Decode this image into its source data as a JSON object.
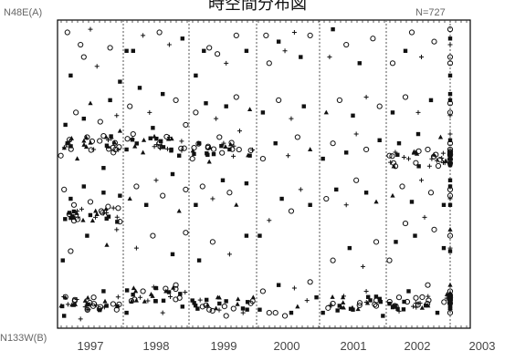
{
  "chart_data": {
    "type": "scatter",
    "title": "時空間分布図",
    "top_label": "N48E(A)",
    "bottom_label": "N133W(B)",
    "n_label": "N=727",
    "x_ticks": [
      "1997",
      "1998",
      "1999",
      "2000",
      "2001",
      "2002",
      "2003"
    ],
    "x_range": [
      1996.0,
      2003.0
    ],
    "y_range": [
      0,
      1
    ],
    "grid": false,
    "legend": "none",
    "marker_types": [
      "circle",
      "square",
      "triangle",
      "plus"
    ],
    "points": [
      [
        1996.1,
        0.04,
        "square"
      ],
      [
        1996.08,
        0.22,
        "square"
      ],
      [
        1996.55,
        0.1,
        "circle"
      ],
      [
        1996.7,
        0.12,
        "square"
      ],
      [
        1996.9,
        0.06,
        "circle"
      ],
      [
        1996.35,
        0.03,
        "plus"
      ],
      [
        1996.1,
        0.45,
        "circle"
      ],
      [
        1996.2,
        0.42,
        "square"
      ],
      [
        1996.25,
        0.4,
        "circle"
      ],
      [
        1996.3,
        0.38,
        "plus"
      ],
      [
        1996.4,
        0.46,
        "square"
      ],
      [
        1996.5,
        0.41,
        "circle"
      ],
      [
        1996.6,
        0.37,
        "triangle"
      ],
      [
        1996.7,
        0.44,
        "square"
      ],
      [
        1996.85,
        0.39,
        "plus"
      ],
      [
        1996.95,
        0.43,
        "square"
      ],
      [
        1996.05,
        0.56,
        "circle"
      ],
      [
        1996.15,
        0.6,
        "square"
      ],
      [
        1996.3,
        0.55,
        "triangle"
      ],
      [
        1996.45,
        0.62,
        "circle"
      ],
      [
        1996.55,
        0.58,
        "plus"
      ],
      [
        1996.7,
        0.52,
        "square"
      ],
      [
        1996.85,
        0.57,
        "circle"
      ],
      [
        1996.95,
        0.64,
        "triangle"
      ],
      [
        1996.12,
        0.66,
        "square"
      ],
      [
        1996.28,
        0.7,
        "circle"
      ],
      [
        1996.4,
        0.68,
        "square"
      ],
      [
        1996.5,
        0.73,
        "triangle"
      ],
      [
        1996.65,
        0.67,
        "circle"
      ],
      [
        1996.8,
        0.74,
        "square"
      ],
      [
        1996.9,
        0.69,
        "plus"
      ],
      [
        1996.2,
        0.82,
        "square"
      ],
      [
        1996.4,
        0.88,
        "circle"
      ],
      [
        1996.6,
        0.85,
        "plus"
      ],
      [
        1996.8,
        0.91,
        "circle"
      ],
      [
        1996.95,
        0.8,
        "square"
      ],
      [
        1996.15,
        0.96,
        "circle"
      ],
      [
        1996.5,
        0.97,
        "plus"
      ],
      [
        1996.35,
        0.92,
        "circle"
      ],
      [
        1997.05,
        0.05,
        "square"
      ],
      [
        1997.2,
        0.09,
        "triangle"
      ],
      [
        1997.3,
        0.12,
        "circle"
      ],
      [
        1997.5,
        0.13,
        "square"
      ],
      [
        1997.65,
        0.12,
        "triangle"
      ],
      [
        1997.8,
        0.14,
        "circle"
      ],
      [
        1997.9,
        0.07,
        "square"
      ],
      [
        1997.6,
        0.05,
        "plus"
      ],
      [
        1997.1,
        0.42,
        "triangle"
      ],
      [
        1997.2,
        0.46,
        "circle"
      ],
      [
        1997.35,
        0.4,
        "square"
      ],
      [
        1997.5,
        0.48,
        "plus"
      ],
      [
        1997.6,
        0.43,
        "circle"
      ],
      [
        1997.75,
        0.5,
        "square"
      ],
      [
        1997.85,
        0.38,
        "triangle"
      ],
      [
        1997.95,
        0.45,
        "circle"
      ],
      [
        1997.05,
        0.58,
        "square"
      ],
      [
        1997.15,
        0.63,
        "circle"
      ],
      [
        1997.3,
        0.57,
        "triangle"
      ],
      [
        1997.45,
        0.65,
        "square"
      ],
      [
        1997.55,
        0.6,
        "circle"
      ],
      [
        1997.7,
        0.62,
        "plus"
      ],
      [
        1997.85,
        0.56,
        "square"
      ],
      [
        1997.95,
        0.66,
        "circle"
      ],
      [
        1997.1,
        0.72,
        "circle"
      ],
      [
        1997.25,
        0.78,
        "square"
      ],
      [
        1997.4,
        0.7,
        "plus"
      ],
      [
        1997.6,
        0.76,
        "square"
      ],
      [
        1997.8,
        0.74,
        "circle"
      ],
      [
        1997.05,
        0.9,
        "square"
      ],
      [
        1997.15,
        0.9,
        "square"
      ],
      [
        1997.3,
        0.95,
        "plus"
      ],
      [
        1997.55,
        0.96,
        "circle"
      ],
      [
        1997.7,
        0.92,
        "plus"
      ],
      [
        1997.9,
        0.94,
        "square"
      ],
      [
        1998.05,
        0.09,
        "square"
      ],
      [
        1998.2,
        0.07,
        "circle"
      ],
      [
        1998.3,
        0.06,
        "circle"
      ],
      [
        1998.45,
        0.08,
        "square"
      ],
      [
        1998.55,
        0.04,
        "circle"
      ],
      [
        1998.8,
        0.05,
        "plus"
      ],
      [
        1998.95,
        0.1,
        "triangle"
      ],
      [
        1998.1,
        0.4,
        "square"
      ],
      [
        1998.2,
        0.46,
        "circle"
      ],
      [
        1998.35,
        0.42,
        "plus"
      ],
      [
        1998.5,
        0.48,
        "square"
      ],
      [
        1998.6,
        0.44,
        "circle"
      ],
      [
        1998.7,
        0.4,
        "triangle"
      ],
      [
        1998.85,
        0.47,
        "square"
      ],
      [
        1998.05,
        0.55,
        "circle"
      ],
      [
        1998.15,
        0.6,
        "square"
      ],
      [
        1998.3,
        0.54,
        "triangle"
      ],
      [
        1998.45,
        0.62,
        "circle"
      ],
      [
        1998.6,
        0.58,
        "square"
      ],
      [
        1998.75,
        0.64,
        "plus"
      ],
      [
        1998.9,
        0.56,
        "square"
      ],
      [
        1998.1,
        0.7,
        "circle"
      ],
      [
        1998.25,
        0.73,
        "square"
      ],
      [
        1998.4,
        0.68,
        "plus"
      ],
      [
        1998.55,
        0.72,
        "square"
      ],
      [
        1998.7,
        0.75,
        "circle"
      ],
      [
        1998.9,
        0.71,
        "triangle"
      ],
      [
        1998.1,
        0.82,
        "square"
      ],
      [
        1998.22,
        0.9,
        "square"
      ],
      [
        1998.3,
        0.91,
        "circle"
      ],
      [
        1998.42,
        0.89,
        "circle"
      ],
      [
        1998.55,
        0.86,
        "plus"
      ],
      [
        1998.7,
        0.95,
        "circle"
      ],
      [
        1998.85,
        0.9,
        "square"
      ],
      [
        1999.05,
        0.3,
        "square"
      ],
      [
        1999.2,
        0.35,
        "plus"
      ],
      [
        1999.4,
        0.42,
        "square"
      ],
      [
        1999.55,
        0.38,
        "circle"
      ],
      [
        1999.7,
        0.45,
        "plus"
      ],
      [
        1999.85,
        0.4,
        "square"
      ],
      [
        1999.1,
        0.55,
        "circle"
      ],
      [
        1999.3,
        0.6,
        "square"
      ],
      [
        1999.5,
        0.56,
        "plus"
      ],
      [
        1999.65,
        0.62,
        "circle"
      ],
      [
        1999.85,
        0.58,
        "triangle"
      ],
      [
        1999.1,
        0.7,
        "square"
      ],
      [
        1999.35,
        0.74,
        "circle"
      ],
      [
        1999.55,
        0.68,
        "plus"
      ],
      [
        1999.75,
        0.72,
        "square"
      ],
      [
        1999.2,
        0.86,
        "circle"
      ],
      [
        1999.45,
        0.9,
        "plus"
      ],
      [
        1999.7,
        0.88,
        "square"
      ],
      [
        1999.85,
        0.95,
        "circle"
      ],
      [
        2000.05,
        0.05,
        "square"
      ],
      [
        2000.2,
        0.08,
        "circle"
      ],
      [
        2000.35,
        0.1,
        "triangle"
      ],
      [
        2000.5,
        0.06,
        "square"
      ],
      [
        2000.7,
        0.12,
        "plus"
      ],
      [
        2000.85,
        0.09,
        "circle"
      ],
      [
        2000.95,
        0.04,
        "square"
      ],
      [
        2000.1,
        0.42,
        "circle"
      ],
      [
        2000.25,
        0.45,
        "square"
      ],
      [
        2000.4,
        0.4,
        "plus"
      ],
      [
        2000.55,
        0.48,
        "circle"
      ],
      [
        2000.7,
        0.44,
        "square"
      ],
      [
        2000.85,
        0.41,
        "triangle"
      ],
      [
        2000.05,
        0.55,
        "square"
      ],
      [
        2000.2,
        0.6,
        "circle"
      ],
      [
        2000.4,
        0.57,
        "square"
      ],
      [
        2000.55,
        0.63,
        "plus"
      ],
      [
        2000.7,
        0.58,
        "circle"
      ],
      [
        2000.9,
        0.61,
        "square"
      ],
      [
        2000.1,
        0.7,
        "triangle"
      ],
      [
        2000.3,
        0.74,
        "circle"
      ],
      [
        2000.5,
        0.69,
        "square"
      ],
      [
        2000.7,
        0.75,
        "plus"
      ],
      [
        2000.9,
        0.72,
        "circle"
      ],
      [
        2000.15,
        0.88,
        "plus"
      ],
      [
        2000.4,
        0.92,
        "circle"
      ],
      [
        2000.6,
        0.86,
        "square"
      ],
      [
        2000.8,
        0.94,
        "circle"
      ],
      [
        2001.05,
        0.22,
        "circle"
      ],
      [
        2001.15,
        0.28,
        "square"
      ],
      [
        2001.3,
        0.34,
        "circle"
      ],
      [
        2001.45,
        0.3,
        "square"
      ],
      [
        2001.6,
        0.36,
        "plus"
      ],
      [
        2001.75,
        0.32,
        "circle"
      ],
      [
        2001.9,
        0.26,
        "square"
      ],
      [
        2001.1,
        0.43,
        "triangle"
      ],
      [
        2001.25,
        0.46,
        "circle"
      ],
      [
        2001.4,
        0.41,
        "square"
      ],
      [
        2001.55,
        0.48,
        "plus"
      ],
      [
        2001.7,
        0.44,
        "circle"
      ],
      [
        2001.9,
        0.4,
        "square"
      ],
      [
        2001.05,
        0.56,
        "circle"
      ],
      [
        2001.2,
        0.6,
        "square"
      ],
      [
        2001.35,
        0.55,
        "plus"
      ],
      [
        2001.5,
        0.63,
        "square"
      ],
      [
        2001.65,
        0.58,
        "circle"
      ],
      [
        2001.85,
        0.62,
        "triangle"
      ],
      [
        2001.1,
        0.7,
        "square"
      ],
      [
        2001.3,
        0.75,
        "circle"
      ],
      [
        2001.5,
        0.7,
        "plus"
      ],
      [
        2001.7,
        0.74,
        "square"
      ],
      [
        2001.1,
        0.86,
        "circle"
      ],
      [
        2001.3,
        0.9,
        "square"
      ],
      [
        2001.55,
        0.88,
        "plus"
      ],
      [
        2001.75,
        0.93,
        "circle"
      ],
      [
        2002.05,
        0.05,
        "circle"
      ],
      [
        2002.2,
        0.1,
        "square"
      ],
      [
        2002.35,
        0.06,
        "plus"
      ],
      [
        2002.55,
        0.12,
        "circle"
      ],
      [
        2002.7,
        0.08,
        "square"
      ],
      [
        2002.9,
        0.14,
        "triangle"
      ],
      [
        2002.1,
        0.4,
        "square"
      ],
      [
        2002.25,
        0.45,
        "circle"
      ],
      [
        2002.4,
        0.42,
        "plus"
      ],
      [
        2002.55,
        0.48,
        "square"
      ],
      [
        2002.7,
        0.43,
        "circle"
      ],
      [
        2002.85,
        0.46,
        "square"
      ],
      [
        2002.05,
        0.55,
        "triangle"
      ],
      [
        2002.2,
        0.6,
        "circle"
      ],
      [
        2002.35,
        0.57,
        "square"
      ],
      [
        2002.55,
        0.63,
        "plus"
      ],
      [
        2002.75,
        0.58,
        "circle"
      ],
      [
        2002.95,
        0.61,
        "square"
      ],
      [
        2002.1,
        0.7,
        "circle"
      ],
      [
        2002.3,
        0.74,
        "square"
      ],
      [
        2002.5,
        0.69,
        "plus"
      ],
      [
        2002.7,
        0.73,
        "circle"
      ],
      [
        2002.9,
        0.76,
        "square"
      ],
      [
        2002.1,
        0.82,
        "square"
      ],
      [
        2002.25,
        0.88,
        "circle"
      ],
      [
        2002.45,
        0.92,
        "plus"
      ],
      [
        2002.6,
        0.86,
        "circle"
      ],
      [
        2002.8,
        0.94,
        "square"
      ],
      [
        1999.05,
        0.06,
        "square"
      ],
      [
        1999.2,
        0.05,
        "circle"
      ],
      [
        1999.3,
        0.05,
        "circle"
      ],
      [
        1999.45,
        0.04,
        "circle"
      ],
      [
        1999.55,
        0.05,
        "square"
      ],
      [
        1999.65,
        0.07,
        "triangle"
      ],
      [
        1999.8,
        0.09,
        "plus"
      ],
      [
        1999.95,
        0.1,
        "square"
      ],
      [
        1999.1,
        0.12,
        "circle"
      ],
      [
        1999.35,
        0.14,
        "square"
      ],
      [
        1999.6,
        0.13,
        "plus"
      ],
      [
        1999.85,
        0.15,
        "circle"
      ],
      [
        2001.2,
        0.1,
        "circle"
      ],
      [
        2001.35,
        0.12,
        "square"
      ],
      [
        2001.5,
        0.08,
        "plus"
      ],
      [
        2001.65,
        0.14,
        "circle"
      ],
      [
        2001.8,
        0.05,
        "square"
      ],
      [
        2001.95,
        0.11,
        "triangle"
      ],
      [
        2000.2,
        0.22,
        "circle"
      ],
      [
        2000.45,
        0.26,
        "square"
      ],
      [
        2000.65,
        0.2,
        "plus"
      ],
      [
        2000.85,
        0.28,
        "circle"
      ],
      [
        1998.15,
        0.22,
        "square"
      ],
      [
        1998.35,
        0.28,
        "circle"
      ],
      [
        1998.6,
        0.24,
        "plus"
      ],
      [
        1998.85,
        0.3,
        "square"
      ],
      [
        1996.2,
        0.25,
        "circle"
      ],
      [
        1996.45,
        0.3,
        "square"
      ],
      [
        1996.75,
        0.27,
        "triangle"
      ],
      [
        1996.9,
        0.32,
        "plus"
      ],
      [
        1997.2,
        0.26,
        "plus"
      ],
      [
        1997.45,
        0.3,
        "circle"
      ],
      [
        1997.75,
        0.24,
        "square"
      ],
      [
        1997.95,
        0.31,
        "circle"
      ],
      [
        2002.2,
        0.25,
        "square"
      ],
      [
        2002.4,
        0.3,
        "circle"
      ],
      [
        2002.65,
        0.26,
        "plus"
      ],
      [
        2002.85,
        0.32,
        "triangle"
      ],
      [
        1999.15,
        0.95,
        "circle"
      ],
      [
        1999.35,
        0.93,
        "square"
      ],
      [
        1999.6,
        0.96,
        "plus"
      ],
      [
        2000.2,
        0.97,
        "square"
      ],
      [
        2001.4,
        0.96,
        "circle"
      ],
      [
        2002.4,
        0.97,
        "circle"
      ]
    ],
    "clusters": [
      {
        "x": [
          1996.05,
          1996.95
        ],
        "y": 0.08,
        "n": 34
      },
      {
        "x": [
          1997.05,
          1997.95
        ],
        "y": 0.11,
        "n": 26
      },
      {
        "x": [
          1998.05,
          1998.95
        ],
        "y": 0.08,
        "n": 22
      },
      {
        "x": [
          2000.05,
          2000.95
        ],
        "y": 0.08,
        "n": 24
      },
      {
        "x": [
          2001.05,
          2001.95
        ],
        "y": 0.08,
        "n": 26
      },
      {
        "x": [
          2002.05,
          2002.95
        ],
        "y": 0.09,
        "n": 22
      },
      {
        "x": [
          1996.1,
          1996.95
        ],
        "y": 0.37,
        "n": 30
      },
      {
        "x": [
          1996.1,
          1996.95
        ],
        "y": 0.6,
        "n": 30
      },
      {
        "x": [
          1997.05,
          1997.95
        ],
        "y": 0.6,
        "n": 26
      },
      {
        "x": [
          1998.05,
          1998.95
        ],
        "y": 0.58,
        "n": 24
      },
      {
        "x": [
          2001.05,
          2001.95
        ],
        "y": 0.55,
        "n": 28
      },
      {
        "x": [
          2002.05,
          2002.95
        ],
        "y": 0.55,
        "n": 24
      }
    ]
  }
}
